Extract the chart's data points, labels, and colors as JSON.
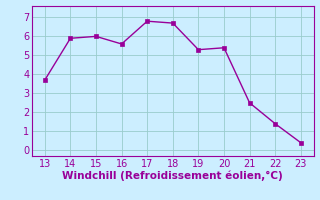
{
  "x": [
    13,
    14,
    15,
    16,
    17,
    18,
    19,
    20,
    21,
    22,
    23
  ],
  "y": [
    3.7,
    5.9,
    6.0,
    5.6,
    6.8,
    6.7,
    5.3,
    5.4,
    2.5,
    1.4,
    0.4
  ],
  "line_color": "#990099",
  "marker": "s",
  "marker_size": 2.5,
  "xlabel": "Windchill (Refroidissement éolien,°C)",
  "xlabel_color": "#990099",
  "background_color": "#cceeff",
  "grid_color": "#99cccc",
  "tick_color": "#990099",
  "spine_color": "#990099",
  "xlim": [
    12.5,
    23.5
  ],
  "ylim": [
    -0.3,
    7.6
  ],
  "xticks": [
    13,
    14,
    15,
    16,
    17,
    18,
    19,
    20,
    21,
    22,
    23
  ],
  "yticks": [
    0,
    1,
    2,
    3,
    4,
    5,
    6,
    7
  ],
  "xlabel_fontsize": 7.5,
  "tick_fontsize": 7
}
